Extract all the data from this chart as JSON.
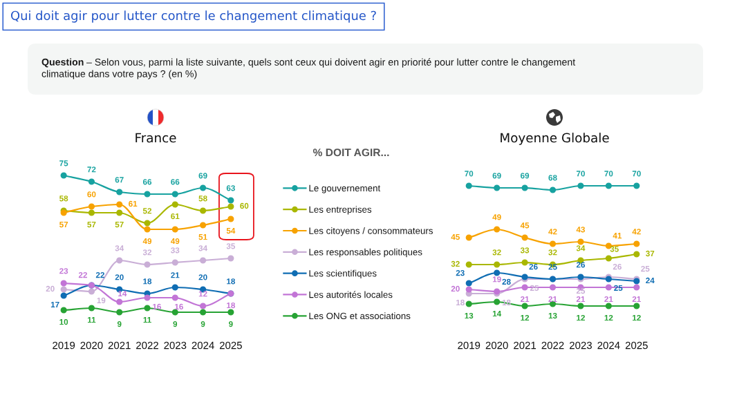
{
  "chart_data": [
    {
      "type": "other",
      "title": "Qui doit agir pour lutter contre le changement climatique ?",
      "annotations": [
        "Question – Selon vous, parmi la liste suivante, quels sont ceux qui doivent agir en priorité pour lutter contre le changement climatique dans votre pays ? (en %)"
      ]
    },
    {
      "type": "line",
      "title": "France",
      "categories": [
        "2019",
        "2020",
        "2021",
        "2022",
        "2023",
        "2024",
        "2025"
      ],
      "tick_labels": "x",
      "data_labels": true,
      "marker": "circle",
      "line_style": "solid",
      "legend": "right",
      "legend_title": "% DOIT AGIR...",
      "series": [
        {
          "name": "Le gouvernement",
          "color": "#17a2a0",
          "values": [
            75,
            72,
            67,
            66,
            66,
            69,
            63
          ]
        },
        {
          "name": "Les entreprises",
          "color": "#a9b700",
          "values": [
            58,
            57,
            57,
            52,
            61,
            58,
            60
          ]
        },
        {
          "name": "Les citoyens / consommateurs",
          "color": "#f7a200",
          "values": [
            57,
            60,
            61,
            49,
            49,
            51,
            54
          ]
        },
        {
          "name": "Les responsables politiques",
          "color": "#c9aed6",
          "values": [
            20,
            19,
            34,
            32,
            33,
            34,
            35
          ]
        },
        {
          "name": "Les scientifiques",
          "color": "#0f6db3",
          "values": [
            17,
            22,
            20,
            18,
            21,
            20,
            18
          ]
        },
        {
          "name": "Les autorités locales",
          "color": "#c275d6",
          "values": [
            23,
            22,
            14,
            16,
            16,
            12,
            18
          ]
        },
        {
          "name": "Les ONG et associations",
          "color": "#27a334",
          "values": [
            10,
            11,
            9,
            11,
            9,
            9,
            9
          ]
        }
      ]
    },
    {
      "type": "line",
      "title": "Moyenne Globale",
      "categories": [
        "2019",
        "2020",
        "2021",
        "2022",
        "2023",
        "2024",
        "2025"
      ],
      "tick_labels": "x",
      "data_labels": true,
      "marker": "circle",
      "line_style": "solid",
      "series": [
        {
          "color": "#17a2a0",
          "values": [
            70,
            69,
            69,
            68,
            70,
            70,
            70
          ]
        },
        {
          "color": "#a9b700",
          "values": [
            32,
            32,
            33,
            32,
            34,
            35,
            37
          ]
        },
        {
          "color": "#f7a200",
          "values": [
            45,
            49,
            45,
            42,
            43,
            41,
            42
          ]
        },
        {
          "color": "#c9aed6",
          "values": [
            18,
            18,
            25,
            25,
            25,
            26,
            25
          ],
          "value_labels": [
            "18",
            "18",
            "25",
            null,
            "25",
            "26",
            "25"
          ]
        },
        {
          "color": "#0f6db3",
          "values": [
            23,
            28,
            26,
            25,
            26,
            25,
            24
          ]
        },
        {
          "color": "#c275d6",
          "values": [
            20,
            19,
            21,
            21,
            21,
            21,
            21
          ]
        },
        {
          "color": "#27a334",
          "values": [
            13,
            14,
            12,
            13,
            12,
            12,
            12
          ]
        }
      ]
    }
  ]
}
